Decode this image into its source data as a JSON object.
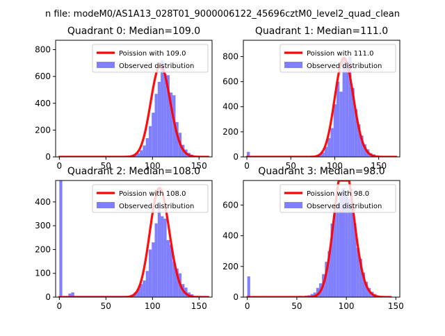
{
  "figure": {
    "suptitle": "n file: modeM0/AS1A13_028T01_9000006122_45696cztM0_level2_quad_clean"
  },
  "colors": {
    "fit_line": "#ff0000",
    "bars": "#8080ff"
  },
  "chart_data": [
    {
      "type": "bar",
      "title": "Quadrant 0: Median=109.0",
      "median": 109.0,
      "legend_position": "upper right",
      "legend": [
        "Poission with 109.0",
        "Observed distribution"
      ],
      "xlim": [
        -4,
        164
      ],
      "ylim": [
        0,
        870
      ],
      "xticks": [
        0,
        50,
        100,
        150
      ],
      "xtick_labels": [
        "0",
        "50",
        "100",
        "150"
      ],
      "yticks": [
        0,
        200,
        400,
        600,
        800
      ],
      "ytick_labels": [
        "0",
        "200",
        "400",
        "600",
        "800"
      ],
      "bin_width": 3.2,
      "bins": [
        [
          0,
          5
        ],
        [
          3.2,
          5
        ],
        [
          6.4,
          5
        ],
        [
          9.6,
          5
        ],
        [
          12.8,
          5
        ],
        [
          16,
          5
        ],
        [
          19.2,
          5
        ],
        [
          22.4,
          5
        ],
        [
          25.6,
          5
        ],
        [
          28.8,
          5
        ],
        [
          32,
          5
        ],
        [
          35.2,
          5
        ],
        [
          38.4,
          5
        ],
        [
          41.6,
          5
        ],
        [
          44.8,
          5
        ],
        [
          48,
          5
        ],
        [
          51.2,
          5
        ],
        [
          54.4,
          5
        ],
        [
          57.6,
          5
        ],
        [
          60.8,
          5
        ],
        [
          64,
          5
        ],
        [
          67.2,
          5
        ],
        [
          70.4,
          8
        ],
        [
          73.6,
          5
        ],
        [
          76.8,
          10
        ],
        [
          80,
          14
        ],
        [
          83.2,
          28
        ],
        [
          86.4,
          50
        ],
        [
          89.6,
          85
        ],
        [
          92.8,
          140
        ],
        [
          96,
          230
        ],
        [
          99.2,
          330
        ],
        [
          102.4,
          470
        ],
        [
          105.6,
          560
        ],
        [
          108.8,
          720
        ],
        [
          112,
          620
        ],
        [
          115.2,
          610
        ],
        [
          118.4,
          480
        ],
        [
          121.6,
          460
        ],
        [
          124.8,
          260
        ],
        [
          128,
          180
        ],
        [
          131.2,
          90
        ],
        [
          134.4,
          55
        ],
        [
          137.6,
          30
        ],
        [
          140.8,
          16
        ],
        [
          144,
          8
        ],
        [
          147.2,
          5
        ],
        [
          150.4,
          5
        ],
        [
          153.6,
          5
        ],
        [
          156.8,
          5
        ]
      ]
    },
    {
      "type": "bar",
      "title": "Quadrant 1: Median=111.0",
      "median": 111.0,
      "legend_position": "upper right",
      "legend": [
        "Poission with 111.0",
        "Observed distribution"
      ],
      "xlim": [
        -4,
        174
      ],
      "ylim": [
        0,
        930
      ],
      "xticks": [
        0,
        50,
        100,
        150
      ],
      "xtick_labels": [
        "0",
        "50",
        "100",
        "150"
      ],
      "yticks": [
        0,
        200,
        400,
        600,
        800
      ],
      "ytick_labels": [
        "0",
        "200",
        "400",
        "600",
        "800"
      ],
      "bin_width": 3.4,
      "bins": [
        [
          0,
          40
        ],
        [
          3.4,
          5
        ],
        [
          6.8,
          5
        ],
        [
          10.2,
          5
        ],
        [
          13.6,
          5
        ],
        [
          17,
          5
        ],
        [
          20.4,
          5
        ],
        [
          23.8,
          5
        ],
        [
          27.2,
          5
        ],
        [
          30.6,
          5
        ],
        [
          34,
          5
        ],
        [
          37.4,
          5
        ],
        [
          40.8,
          5
        ],
        [
          44.2,
          5
        ],
        [
          47.6,
          5
        ],
        [
          51,
          5
        ],
        [
          54.4,
          5
        ],
        [
          57.8,
          5
        ],
        [
          61.2,
          5
        ],
        [
          64.6,
          5
        ],
        [
          68,
          5
        ],
        [
          71.4,
          8
        ],
        [
          74.8,
          5
        ],
        [
          78.2,
          10
        ],
        [
          81.6,
          20
        ],
        [
          85,
          35
        ],
        [
          88.4,
          80
        ],
        [
          91.8,
          150
        ],
        [
          95.2,
          230
        ],
        [
          98.6,
          420
        ],
        [
          102,
          600
        ],
        [
          105.4,
          520
        ],
        [
          108.8,
          790
        ],
        [
          112.2,
          710
        ],
        [
          115.6,
          800
        ],
        [
          119,
          550
        ],
        [
          122.4,
          380
        ],
        [
          125.8,
          260
        ],
        [
          129.2,
          170
        ],
        [
          132.6,
          100
        ],
        [
          136,
          60
        ],
        [
          139.4,
          30
        ],
        [
          142.8,
          20
        ],
        [
          146.2,
          8
        ],
        [
          149.6,
          5
        ],
        [
          153,
          5
        ],
        [
          156.4,
          5
        ],
        [
          159.8,
          5
        ],
        [
          163.2,
          5
        ],
        [
          166.6,
          5
        ]
      ]
    },
    {
      "type": "bar",
      "title": "Quadrant 2: Median=108.0",
      "median": 108.0,
      "legend_position": "upper right",
      "legend": [
        "Poission with 108.0",
        "Observed distribution"
      ],
      "xlim": [
        -4,
        164
      ],
      "ylim": [
        0,
        490
      ],
      "xticks": [
        0,
        50,
        100,
        150
      ],
      "xtick_labels": [
        "0",
        "50",
        "100",
        "150"
      ],
      "yticks": [
        0,
        100,
        200,
        300,
        400
      ],
      "ytick_labels": [
        "0",
        "100",
        "200",
        "300",
        "400"
      ],
      "bin_width": 3.2,
      "bins": [
        [
          0,
          500
        ],
        [
          3.2,
          5
        ],
        [
          6.4,
          5
        ],
        [
          9.6,
          15
        ],
        [
          12.8,
          20
        ],
        [
          16,
          5
        ],
        [
          19.2,
          5
        ],
        [
          22.4,
          5
        ],
        [
          25.6,
          5
        ],
        [
          28.8,
          5
        ],
        [
          32,
          5
        ],
        [
          35.2,
          5
        ],
        [
          38.4,
          5
        ],
        [
          41.6,
          5
        ],
        [
          44.8,
          5
        ],
        [
          48,
          5
        ],
        [
          51.2,
          5
        ],
        [
          54.4,
          5
        ],
        [
          57.6,
          5
        ],
        [
          60.8,
          5
        ],
        [
          64,
          5
        ],
        [
          67.2,
          5
        ],
        [
          70.4,
          5
        ],
        [
          73.6,
          5
        ],
        [
          76.8,
          10
        ],
        [
          80,
          20
        ],
        [
          83.2,
          35
        ],
        [
          86.4,
          55
        ],
        [
          89.6,
          70
        ],
        [
          92.8,
          110
        ],
        [
          96,
          200
        ],
        [
          99.2,
          230
        ],
        [
          102.4,
          310
        ],
        [
          105.6,
          400
        ],
        [
          108.8,
          340
        ],
        [
          112,
          330
        ],
        [
          115.2,
          240
        ],
        [
          118.4,
          220
        ],
        [
          121.6,
          150
        ],
        [
          124.8,
          120
        ],
        [
          128,
          100
        ],
        [
          131.2,
          55
        ],
        [
          134.4,
          40
        ],
        [
          137.6,
          20
        ],
        [
          140.8,
          12
        ],
        [
          144,
          5
        ],
        [
          147.2,
          5
        ],
        [
          150.4,
          5
        ],
        [
          153.6,
          5
        ],
        [
          156.8,
          5
        ]
      ]
    },
    {
      "type": "bar",
      "title": "Quadrant 3: Median=98.0",
      "median": 98.0,
      "legend_position": "upper right",
      "legend": [
        "Poission with 98.0",
        "Observed distribution"
      ],
      "xlim": [
        -4,
        154
      ],
      "ylim": [
        0,
        760
      ],
      "xticks": [
        0,
        50,
        100,
        150
      ],
      "xtick_labels": [
        "0",
        "50",
        "100",
        "150"
      ],
      "yticks": [
        0,
        200,
        400,
        600
      ],
      "ytick_labels": [
        "0",
        "200",
        "400",
        "600"
      ],
      "bin_width": 2.9,
      "bins": [
        [
          0,
          135
        ],
        [
          2.9,
          5
        ],
        [
          5.8,
          5
        ],
        [
          8.7,
          5
        ],
        [
          11.6,
          5
        ],
        [
          14.5,
          5
        ],
        [
          17.4,
          5
        ],
        [
          20.3,
          5
        ],
        [
          23.2,
          5
        ],
        [
          26.1,
          5
        ],
        [
          29,
          5
        ],
        [
          31.9,
          5
        ],
        [
          34.8,
          5
        ],
        [
          37.7,
          5
        ],
        [
          40.6,
          5
        ],
        [
          43.5,
          5
        ],
        [
          46.4,
          5
        ],
        [
          49.3,
          5
        ],
        [
          52.2,
          8
        ],
        [
          55.1,
          5
        ],
        [
          58,
          10
        ],
        [
          60.9,
          12
        ],
        [
          63.8,
          20
        ],
        [
          66.7,
          30
        ],
        [
          69.6,
          60
        ],
        [
          72.5,
          90
        ],
        [
          75.4,
          150
        ],
        [
          78.3,
          230
        ],
        [
          81.2,
          300
        ],
        [
          84.1,
          480
        ],
        [
          87,
          560
        ],
        [
          89.9,
          610
        ],
        [
          92.8,
          660
        ],
        [
          95.7,
          710
        ],
        [
          98.6,
          670
        ],
        [
          101.5,
          640
        ],
        [
          104.4,
          590
        ],
        [
          107.3,
          480
        ],
        [
          110.2,
          320
        ],
        [
          113.1,
          250
        ],
        [
          116,
          160
        ],
        [
          118.9,
          100
        ],
        [
          121.8,
          60
        ],
        [
          124.7,
          35
        ],
        [
          127.6,
          20
        ],
        [
          130.5,
          10
        ],
        [
          133.4,
          5
        ],
        [
          136.3,
          5
        ],
        [
          139.2,
          5
        ],
        [
          142.1,
          5
        ]
      ]
    }
  ]
}
